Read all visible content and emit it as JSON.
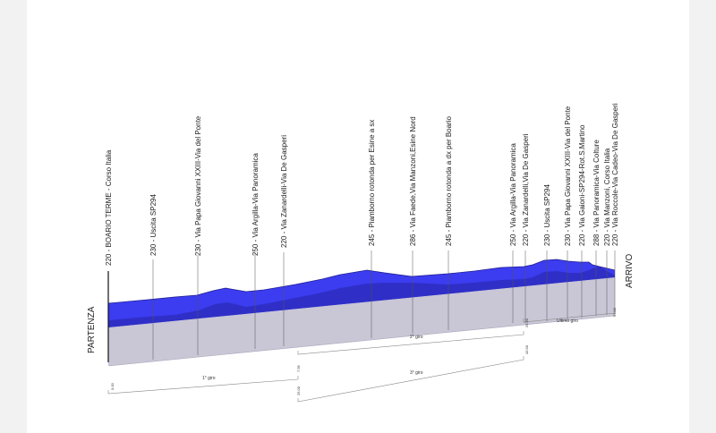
{
  "start_label": "PARTENZA",
  "finish_label": "ARRIVO",
  "waypoints": [
    {
      "label": "220 - BOARIO TERME - Corso Italia"
    },
    {
      "label": "230 - Uscita SP294"
    },
    {
      "label": "230 - Via Papa Giovanni XXIII-Via del Ponte"
    },
    {
      "label": "250 - Via Argilla-Via Panoramica"
    },
    {
      "label": "220 - Via Zanardelli-Via De Gasperi"
    },
    {
      "label": "245 - Piamborno rotonda per Esine a sx"
    },
    {
      "label": "286 - Via Faede,Via Manzoni,Esine Nord"
    },
    {
      "label": "245 - Piamborno rotonda a dx per Boario"
    },
    {
      "label": "250 - Via Argilla-Via Panoramica"
    },
    {
      "label": "220 - Via Zanardelli,Via De Gasperi"
    },
    {
      "label": "230 - Uscita SP294"
    },
    {
      "label": "230 - Via Papa Giovanni XXIII-Via del Ponte"
    },
    {
      "label": "220 - Via Gaioni-SP294-Rot.S.Martino"
    },
    {
      "label": "288 - Via Panoramica-Via Colture"
    },
    {
      "label": "220 - Via Manzoni, Corso Italia"
    },
    {
      "label": "220 - Via Roccole-Via Cadeo-Via De Gasperi"
    }
  ],
  "km_marks": [
    "0.00",
    "7.95",
    "25.00",
    "25.90",
    "43.90",
    "53.90"
  ],
  "laps": [
    {
      "label": "1° giro"
    },
    {
      "label": "2° giro"
    },
    {
      "label": "3° giro"
    },
    {
      "label": "Ultimo giro"
    }
  ],
  "colors": {
    "profile": "#3c3cf0",
    "profile_top": "#5a5af5",
    "shadow": "#2d2dc0",
    "base": "#c9c6d6",
    "base_dark": "#b7b3c6"
  }
}
